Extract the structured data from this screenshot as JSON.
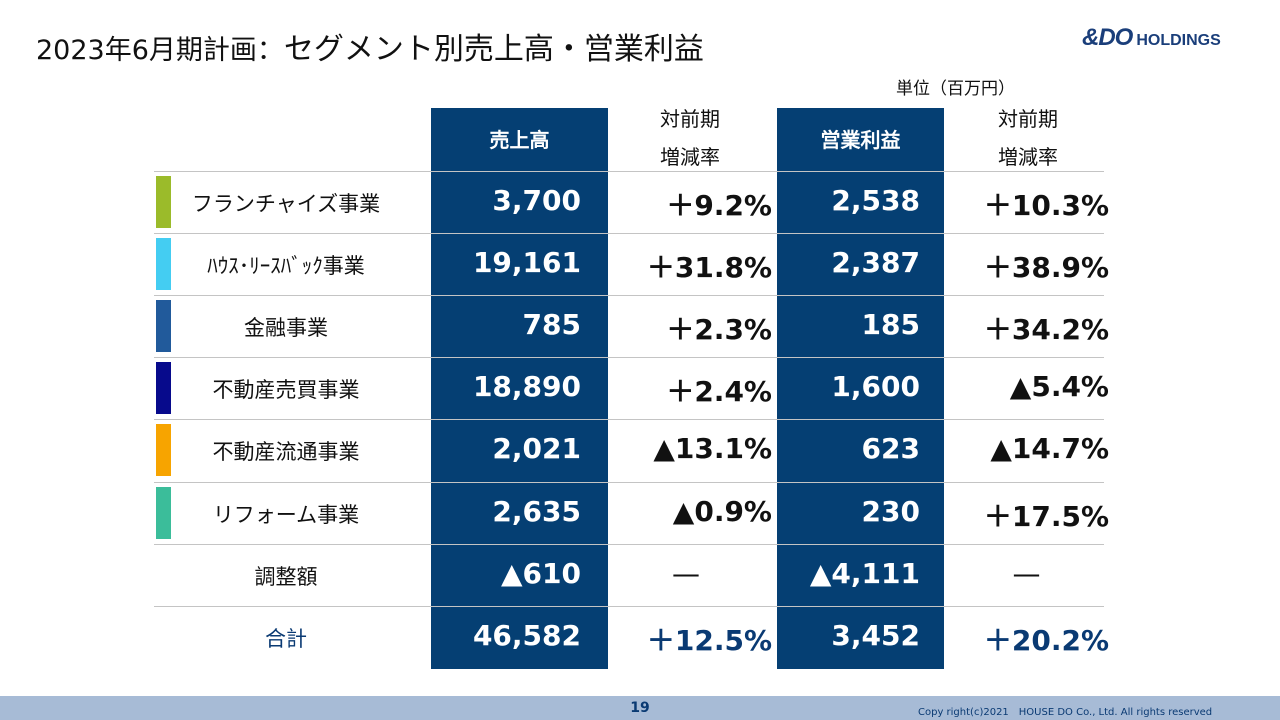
{
  "title": {
    "prefix": "2023年6月期計画：",
    "main": "セグメント別売上高・営業利益"
  },
  "logo": {
    "brand": "&DO",
    "holdings": "HOLDINGS"
  },
  "unit": "単位（百万円）",
  "headers": {
    "sales": "売上高",
    "sales_yoy_1": "対前期",
    "sales_yoy_2": "増減率",
    "op": "営業利益",
    "op_yoy_1": "対前期",
    "op_yoy_2": "増減率"
  },
  "colors": {
    "navy": "#053f73",
    "accent_blue": "#0a3a73"
  },
  "rows": [
    {
      "segment": "フランチャイズ事業",
      "color": "#9bbb2a",
      "sales": "3,700",
      "sales_yoy": "＋9.2%",
      "op": "2,538",
      "op_yoy": "＋10.3%"
    },
    {
      "segment": "ﾊｳｽ･ﾘｰｽﾊﾞｯｸ事業",
      "color": "#44cdf2",
      "sales": "19,161",
      "sales_yoy": "＋31.8%",
      "op": "2,387",
      "op_yoy": "＋38.9%"
    },
    {
      "segment": "金融事業",
      "color": "#215a9b",
      "sales": "785",
      "sales_yoy": "＋2.3%",
      "op": "185",
      "op_yoy": "＋34.2%"
    },
    {
      "segment": "不動産売買事業",
      "color": "#070a8c",
      "sales": "18,890",
      "sales_yoy": "＋2.4%",
      "op": "1,600",
      "op_yoy": "▲5.4%"
    },
    {
      "segment": "不動産流通事業",
      "color": "#f7a400",
      "sales": "2,021",
      "sales_yoy": "▲13.1%",
      "op": "623",
      "op_yoy": "▲14.7%"
    },
    {
      "segment": "リフォーム事業",
      "color": "#3bbd9a",
      "sales": "2,635",
      "sales_yoy": "▲0.9%",
      "op": "230",
      "op_yoy": "＋17.5%"
    },
    {
      "segment": "調整額",
      "color": "",
      "sales": "▲610",
      "sales_yoy": "—",
      "op": "▲4,111",
      "op_yoy": "—"
    },
    {
      "segment": "合計",
      "color": "",
      "sales": "46,582",
      "sales_yoy": "＋12.5%",
      "op": "3,452",
      "op_yoy": "＋20.2%"
    }
  ],
  "footer": {
    "page": "19",
    "copyright": "Copy right(c)2021　HOUSE DO Co., Ltd. All rights reserved"
  }
}
